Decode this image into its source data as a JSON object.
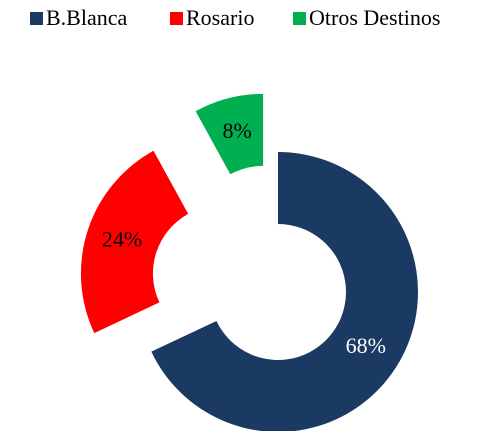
{
  "chart_data": {
    "type": "pie",
    "categories": [
      "B.Blanca",
      "Rosario",
      "Otros Destinos"
    ],
    "values": [
      68,
      24,
      8
    ],
    "value_labels": [
      "68%",
      "24%",
      "8%"
    ],
    "colors": [
      "#1a3a63",
      "#ff0000",
      "#00b050"
    ],
    "label_colors": [
      "#ffffff",
      "#000000",
      "#000000"
    ]
  }
}
